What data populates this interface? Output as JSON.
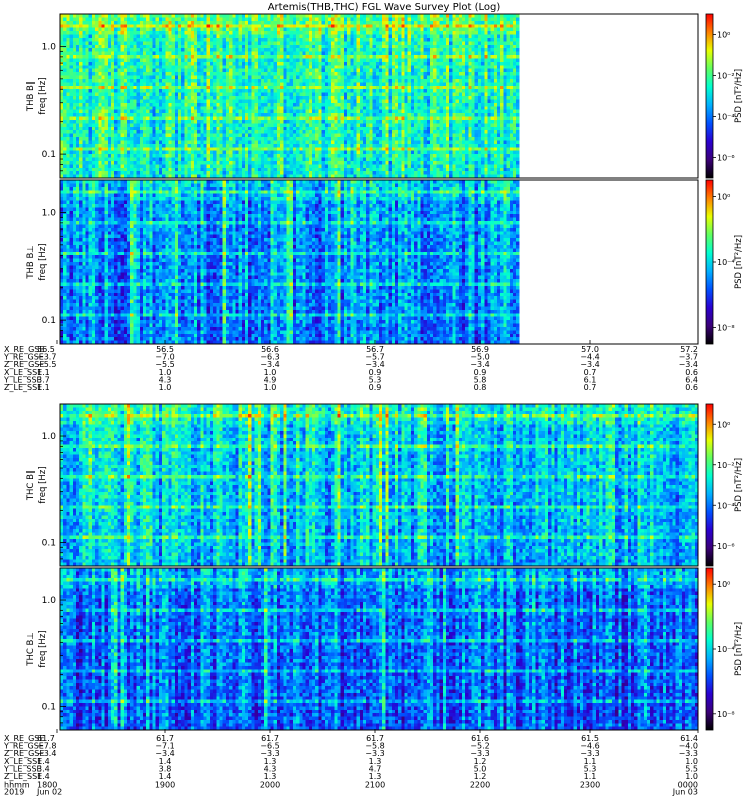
{
  "title": "Artemis(THB,THC) FGL Wave Survey Plot (Log)",
  "colors": {
    "colorbar": [
      "#000000",
      "#3b0078",
      "#2a00d0",
      "#0050ff",
      "#00b0ff",
      "#00ffd0",
      "#60ff60",
      "#e8ff00",
      "#ff8000",
      "#ff0000"
    ]
  },
  "chart_data": [
    {
      "type": "heatmap",
      "id": "thb_bpar",
      "ylabel": [
        "THB B‖",
        "freq [Hz]"
      ],
      "colorbar_label": "PSD [nT²/Hz]",
      "yscale": "log",
      "ylim": [
        0.06,
        2.0
      ],
      "yticks": [
        {
          "value": 1.0,
          "label": "1.0"
        },
        {
          "value": 0.1,
          "label": "0.1"
        }
      ],
      "cbar_ticks": [
        {
          "exp": 0,
          "label": "10⁰"
        },
        {
          "exp": -2,
          "label": "10⁻²"
        },
        {
          "exp": -4,
          "label": "10⁻⁴"
        },
        {
          "exp": -6,
          "label": "10⁻⁶"
        }
      ],
      "cbar_range": [
        -7,
        1
      ],
      "data_end_fraction": 0.72,
      "level": 0.6
    },
    {
      "type": "heatmap",
      "id": "thb_bperp",
      "ylabel": [
        "THB B⊥",
        "freq [Hz]"
      ],
      "colorbar_label": "PSD [nT²/Hz]",
      "yscale": "log",
      "ylim": [
        0.06,
        2.0
      ],
      "yticks": [
        {
          "value": 1.0,
          "label": "1.0"
        },
        {
          "value": 0.1,
          "label": "0.1"
        }
      ],
      "cbar_ticks": [
        {
          "exp": 0,
          "label": "10⁰"
        },
        {
          "exp": -4,
          "label": "10⁻⁴"
        },
        {
          "exp": -8,
          "label": "10⁻⁸"
        }
      ],
      "cbar_range": [
        -9,
        1
      ],
      "data_end_fraction": 0.72,
      "level": 0.42
    },
    {
      "type": "heatmap",
      "id": "thc_bpar",
      "ylabel": [
        "THC B‖",
        "freq [Hz]"
      ],
      "colorbar_label": "PSD [nT²/Hz]",
      "yscale": "log",
      "ylim": [
        0.06,
        2.0
      ],
      "yticks": [
        {
          "value": 1.0,
          "label": "1.0"
        },
        {
          "value": 0.1,
          "label": "0.1"
        }
      ],
      "cbar_ticks": [
        {
          "exp": 0,
          "label": "10⁰"
        },
        {
          "exp": -2,
          "label": "10⁻²"
        },
        {
          "exp": -4,
          "label": "10⁻⁴"
        },
        {
          "exp": -6,
          "label": "10⁻⁶"
        }
      ],
      "cbar_range": [
        -7,
        1
      ],
      "data_end_fraction": 1.0,
      "level": 0.5
    },
    {
      "type": "heatmap",
      "id": "thc_bperp",
      "ylabel": [
        "THC B⊥",
        "freq [Hz]"
      ],
      "colorbar_label": "PSD [nT²/Hz]",
      "yscale": "log",
      "ylim": [
        0.06,
        2.0
      ],
      "yticks": [
        {
          "value": 1.0,
          "label": "1.0"
        },
        {
          "value": 0.1,
          "label": "0.1"
        }
      ],
      "cbar_ticks": [
        {
          "exp": 0,
          "label": "10⁰"
        },
        {
          "exp": -4,
          "label": "10⁻⁴"
        },
        {
          "exp": -8,
          "label": "10⁻⁸"
        }
      ],
      "cbar_range": [
        -9,
        1
      ],
      "data_end_fraction": 1.0,
      "level": 0.38
    }
  ],
  "ephemeris": [
    {
      "id": "thb",
      "rows": [
        {
          "label": "X_RE_GSE",
          "values": [
            "56.5",
            "56.5",
            "56.6",
            "56.7",
            "56.9",
            "57.0",
            "57.2"
          ]
        },
        {
          "label": "Y_RE_GSE",
          "values": [
            "−3.7",
            "−7.0",
            "−6.3",
            "−5.7",
            "−5.0",
            "−4.4",
            "−3.7"
          ]
        },
        {
          "label": "Z_RE_GSE",
          "values": [
            "−5.5",
            "−5.5",
            "−3.4",
            "−3.4",
            "−3.4",
            "−3.4",
            "−3.4"
          ]
        },
        {
          "label": "X_LE_SSE",
          "values": [
            "1.1",
            "1.0",
            "1.0",
            "0.9",
            "0.9",
            "0.7",
            "0.6"
          ]
        },
        {
          "label": "Y_LE_SSE",
          "values": [
            "3.7",
            "4.3",
            "4.9",
            "5.3",
            "5.8",
            "6.1",
            "6.4"
          ]
        },
        {
          "label": "Z_LE_SSE",
          "values": [
            "1.1",
            "1.0",
            "1.0",
            "0.9",
            "0.8",
            "0.7",
            "0.6"
          ]
        }
      ]
    },
    {
      "id": "thc",
      "rows": [
        {
          "label": "X_RE_GSE",
          "values": [
            "61.7",
            "61.7",
            "61.7",
            "61.7",
            "61.6",
            "61.5",
            "61.4"
          ]
        },
        {
          "label": "Y_RE_GSE",
          "values": [
            "−7.8",
            "−7.1",
            "−6.5",
            "−5.8",
            "−5.2",
            "−4.6",
            "−4.0"
          ]
        },
        {
          "label": "Z_RE_GSE",
          "values": [
            "−3.4",
            "−3.4",
            "−3.3",
            "−3.3",
            "−3.3",
            "−3.3",
            "−3.3"
          ]
        },
        {
          "label": "X_LE_SSE",
          "values": [
            "1.4",
            "1.4",
            "1.3",
            "1.3",
            "1.2",
            "1.1",
            "1.0"
          ]
        },
        {
          "label": "Y_LE_SSE",
          "values": [
            "3.4",
            "3.8",
            "4.3",
            "4.7",
            "5.0",
            "5.3",
            "5.5"
          ]
        },
        {
          "label": "Z_LE_SSE",
          "values": [
            "1.4",
            "1.4",
            "1.3",
            "1.3",
            "1.2",
            "1.1",
            "1.0"
          ]
        }
      ],
      "time": {
        "label_row1": "hhmm",
        "label_row2": "2019",
        "ticks": [
          "1800",
          "1900",
          "2000",
          "2100",
          "2200",
          "2300",
          "0000"
        ],
        "dates": [
          "Jun 02",
          "",
          "",
          "",
          "",
          "",
          "Jun 03"
        ]
      }
    }
  ]
}
